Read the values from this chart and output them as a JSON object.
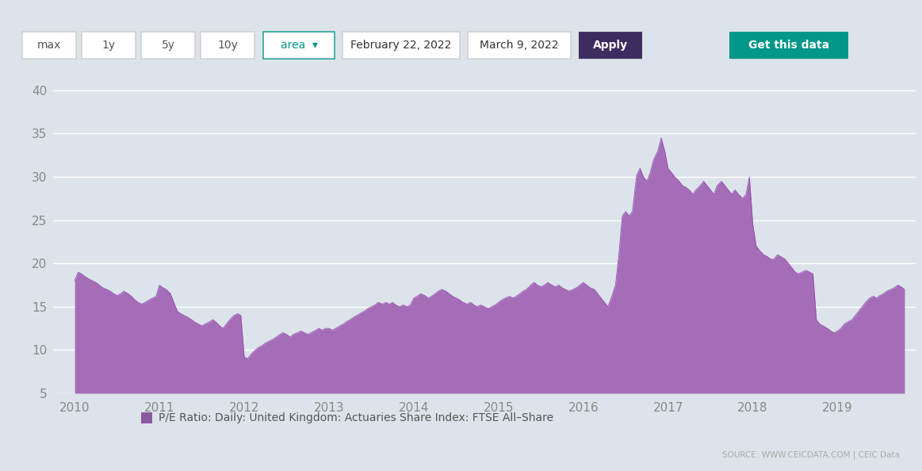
{
  "background_color": "#dde3ea",
  "chart_bg": "#dde3ea",
  "area_color": "#a56db8",
  "area_alpha": 1.0,
  "line_color": "#8e44ad",
  "ylim": [
    5,
    42
  ],
  "yticks": [
    5,
    10,
    15,
    20,
    25,
    30,
    35,
    40
  ],
  "xlabel_years": [
    "2010",
    "2011",
    "2012",
    "2013",
    "2014",
    "2015",
    "2016",
    "2017",
    "2018",
    "2019"
  ],
  "legend_label": "P/E Ratio: Daily: United Kingdom: Actuaries Share Index: FTSE All–Share",
  "legend_color": "#8b5a9e",
  "source_text": "SOURCE: WWW.CEICDATA.COM | CEIC Data",
  "toolbar_bg": "#ffffff",
  "apply_btn_color": "#3d2c5e",
  "get_data_btn_color": "#009688",
  "grid_color": "#ffffff",
  "grid_linewidth": 1.0,
  "tick_color": "#888888",
  "tick_fontsize": 11,
  "series_x": [
    2010.0,
    2010.04,
    2010.08,
    2010.12,
    2010.17,
    2010.21,
    2010.25,
    2010.29,
    2010.33,
    2010.38,
    2010.42,
    2010.46,
    2010.5,
    2010.54,
    2010.58,
    2010.63,
    2010.67,
    2010.71,
    2010.75,
    2010.79,
    2010.83,
    2010.88,
    2010.92,
    2010.96,
    2011.0,
    2011.04,
    2011.08,
    2011.13,
    2011.17,
    2011.21,
    2011.25,
    2011.29,
    2011.33,
    2011.38,
    2011.42,
    2011.46,
    2011.5,
    2011.54,
    2011.58,
    2011.63,
    2011.67,
    2011.71,
    2011.75,
    2011.79,
    2011.83,
    2011.88,
    2011.92,
    2011.96,
    2012.0,
    2012.04,
    2012.08,
    2012.13,
    2012.17,
    2012.21,
    2012.25,
    2012.29,
    2012.33,
    2012.38,
    2012.42,
    2012.46,
    2012.5,
    2012.54,
    2012.58,
    2012.63,
    2012.67,
    2012.71,
    2012.75,
    2012.79,
    2012.83,
    2012.88,
    2012.92,
    2012.96,
    2013.0,
    2013.04,
    2013.08,
    2013.13,
    2013.17,
    2013.21,
    2013.25,
    2013.29,
    2013.33,
    2013.38,
    2013.42,
    2013.46,
    2013.5,
    2013.54,
    2013.58,
    2013.63,
    2013.67,
    2013.71,
    2013.75,
    2013.79,
    2013.83,
    2013.88,
    2013.92,
    2013.96,
    2014.0,
    2014.04,
    2014.08,
    2014.13,
    2014.17,
    2014.21,
    2014.25,
    2014.29,
    2014.33,
    2014.38,
    2014.42,
    2014.46,
    2014.5,
    2014.54,
    2014.58,
    2014.63,
    2014.67,
    2014.71,
    2014.75,
    2014.79,
    2014.83,
    2014.88,
    2014.92,
    2014.96,
    2015.0,
    2015.04,
    2015.08,
    2015.13,
    2015.17,
    2015.21,
    2015.25,
    2015.29,
    2015.33,
    2015.38,
    2015.42,
    2015.46,
    2015.5,
    2015.54,
    2015.58,
    2015.63,
    2015.67,
    2015.71,
    2015.75,
    2015.79,
    2015.83,
    2015.88,
    2015.92,
    2015.96,
    2016.0,
    2016.04,
    2016.08,
    2016.13,
    2016.17,
    2016.21,
    2016.25,
    2016.29,
    2016.33,
    2016.38,
    2016.42,
    2016.46,
    2016.5,
    2016.54,
    2016.58,
    2016.63,
    2016.67,
    2016.71,
    2016.75,
    2016.79,
    2016.83,
    2016.88,
    2016.92,
    2016.96,
    2017.0,
    2017.04,
    2017.08,
    2017.13,
    2017.17,
    2017.21,
    2017.25,
    2017.29,
    2017.33,
    2017.38,
    2017.42,
    2017.46,
    2017.5,
    2017.54,
    2017.58,
    2017.63,
    2017.67,
    2017.71,
    2017.75,
    2017.79,
    2017.83,
    2017.88,
    2017.92,
    2017.96,
    2018.0,
    2018.04,
    2018.08,
    2018.13,
    2018.17,
    2018.21,
    2018.25,
    2018.29,
    2018.33,
    2018.38,
    2018.42,
    2018.46,
    2018.5,
    2018.54,
    2018.58,
    2018.63,
    2018.67,
    2018.71,
    2018.75,
    2018.79,
    2018.83,
    2018.88,
    2018.92,
    2018.96,
    2019.0,
    2019.04,
    2019.08,
    2019.13,
    2019.17,
    2019.21,
    2019.25,
    2019.29,
    2019.33,
    2019.38,
    2019.42,
    2019.46,
    2019.5,
    2019.54,
    2019.58,
    2019.63,
    2019.67,
    2019.71,
    2019.75,
    2019.79
  ],
  "series_y": [
    18.0,
    19.0,
    18.8,
    18.5,
    18.2,
    18.0,
    17.8,
    17.5,
    17.2,
    17.0,
    16.8,
    16.5,
    16.3,
    16.5,
    16.8,
    16.5,
    16.2,
    15.8,
    15.5,
    15.3,
    15.5,
    15.8,
    16.0,
    16.2,
    17.5,
    17.2,
    17.0,
    16.5,
    15.5,
    14.5,
    14.2,
    14.0,
    13.8,
    13.5,
    13.2,
    13.0,
    12.8,
    13.0,
    13.2,
    13.5,
    13.2,
    12.8,
    12.5,
    13.0,
    13.5,
    14.0,
    14.2,
    14.0,
    9.2,
    9.0,
    9.5,
    10.0,
    10.3,
    10.5,
    10.8,
    11.0,
    11.2,
    11.5,
    11.8,
    12.0,
    11.8,
    11.5,
    11.8,
    12.0,
    12.2,
    12.0,
    11.8,
    12.0,
    12.2,
    12.5,
    12.3,
    12.5,
    12.5,
    12.3,
    12.5,
    12.8,
    13.0,
    13.3,
    13.5,
    13.8,
    14.0,
    14.3,
    14.5,
    14.8,
    15.0,
    15.2,
    15.5,
    15.3,
    15.5,
    15.3,
    15.5,
    15.2,
    15.0,
    15.2,
    15.0,
    15.2,
    16.0,
    16.2,
    16.5,
    16.3,
    16.0,
    16.2,
    16.5,
    16.8,
    17.0,
    16.8,
    16.5,
    16.2,
    16.0,
    15.8,
    15.5,
    15.3,
    15.5,
    15.2,
    15.0,
    15.2,
    15.0,
    14.8,
    15.0,
    15.2,
    15.5,
    15.8,
    16.0,
    16.2,
    16.0,
    16.2,
    16.5,
    16.8,
    17.0,
    17.5,
    17.8,
    17.5,
    17.3,
    17.5,
    17.8,
    17.5,
    17.3,
    17.5,
    17.2,
    17.0,
    16.8,
    17.0,
    17.2,
    17.5,
    17.8,
    17.5,
    17.2,
    17.0,
    16.5,
    16.0,
    15.5,
    15.0,
    16.0,
    17.5,
    21.0,
    25.5,
    26.0,
    25.5,
    26.0,
    30.2,
    31.0,
    30.0,
    29.5,
    30.5,
    32.0,
    33.0,
    34.5,
    33.0,
    31.0,
    30.5,
    30.0,
    29.5,
    29.0,
    28.8,
    28.5,
    28.0,
    28.5,
    29.0,
    29.5,
    29.0,
    28.5,
    28.0,
    29.0,
    29.5,
    29.0,
    28.5,
    28.0,
    28.5,
    28.0,
    27.5,
    28.0,
    30.0,
    24.5,
    22.0,
    21.5,
    21.0,
    20.8,
    20.5,
    20.5,
    21.0,
    20.8,
    20.5,
    20.0,
    19.5,
    19.0,
    18.8,
    19.0,
    19.2,
    19.0,
    18.8,
    13.5,
    13.0,
    12.8,
    12.5,
    12.2,
    12.0,
    12.2,
    12.5,
    13.0,
    13.3,
    13.5,
    14.0,
    14.5,
    15.0,
    15.5,
    16.0,
    16.2,
    16.0,
    16.3,
    16.5,
    16.8,
    17.0,
    17.2,
    17.5,
    17.3,
    17.0
  ]
}
